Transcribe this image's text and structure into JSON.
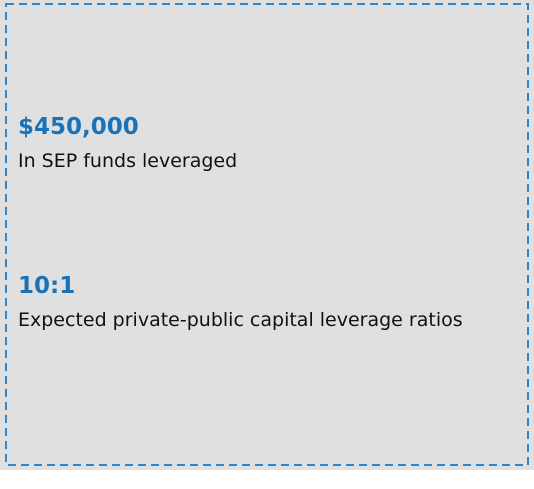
{
  "stats": [
    {
      "value": "$450,000",
      "label": "In SEP funds leveraged"
    },
    {
      "value": "10:1",
      "label": "Expected private-public capital leverage ratios"
    }
  ]
}
